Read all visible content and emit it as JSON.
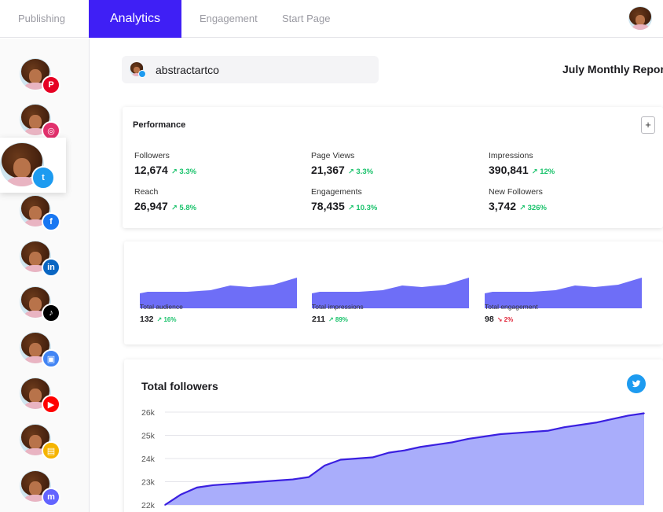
{
  "nav": {
    "tabs": [
      {
        "label": "Publishing",
        "active": false
      },
      {
        "label": "Analytics",
        "active": true
      },
      {
        "label": "Engagement",
        "active": false
      },
      {
        "label": "Start Page",
        "active": false
      }
    ]
  },
  "sidebar": {
    "accounts": [
      {
        "network": "pinterest-icon",
        "color": "#e60023",
        "glyph": "P"
      },
      {
        "network": "instagram-icon",
        "color": "#e1306c",
        "glyph": "◎"
      },
      {
        "network": "twitter-icon",
        "color": "#1d9bf0",
        "glyph": "t",
        "selected": true
      },
      {
        "network": "facebook-icon",
        "color": "#1877f2",
        "glyph": "f"
      },
      {
        "network": "linkedin-icon",
        "color": "#0a66c2",
        "glyph": "in"
      },
      {
        "network": "tiktok-icon",
        "color": "#000000",
        "glyph": "♪"
      },
      {
        "network": "google-business-icon",
        "color": "#4285f4",
        "glyph": "▣"
      },
      {
        "network": "youtube-icon",
        "color": "#ff0000",
        "glyph": "▶"
      },
      {
        "network": "start-page-icon",
        "color": "#f5b400",
        "glyph": "▤"
      },
      {
        "network": "mastodon-icon",
        "color": "#6364ff",
        "glyph": "m"
      }
    ]
  },
  "header": {
    "account_name": "abstractartco",
    "report_title": "July Monthly Report"
  },
  "performance": {
    "title": "Performance",
    "add_label": "+",
    "metrics": [
      {
        "label": "Followers",
        "value": "12,674",
        "change": "↗ 3.3%"
      },
      {
        "label": "Page Views",
        "value": "21,367",
        "change": "↗ 3.3%"
      },
      {
        "label": "Impressions",
        "value": "390,841",
        "change": "↗ 12%"
      },
      {
        "label": "Reach",
        "value": "26,947",
        "change": "↗ 5.8%"
      },
      {
        "label": "Engagements",
        "value": "78,435",
        "change": "↗ 10.3%"
      },
      {
        "label": "New Followers",
        "value": "3,742",
        "change": "↗ 326%"
      }
    ]
  },
  "sparklines": [
    {
      "label": "Total audience",
      "value": "132",
      "change": "↗ 16%",
      "direction": "up"
    },
    {
      "label": "Total impressions",
      "value": "211",
      "change": "↗ 89%",
      "direction": "up"
    },
    {
      "label": "Total engagement",
      "value": "98",
      "change": "↘ 2%",
      "direction": "down"
    }
  ],
  "colors": {
    "accent": "#3f1ff5",
    "spark_fill": "#6e6ef7",
    "area_fill": "#a9adfb",
    "line": "#3a1fe0",
    "positive": "#19c26b",
    "negative": "#e0263a"
  },
  "chart_data": {
    "type": "area",
    "title": "Total followers",
    "ylabel": "",
    "xlabel": "",
    "yticks": [
      "26k",
      "25k",
      "24k",
      "23k",
      "22k"
    ],
    "ylim": [
      22000,
      26000
    ],
    "x": [
      0,
      1,
      2,
      3,
      4,
      5,
      6,
      7,
      8,
      9,
      10,
      11,
      12,
      13,
      14,
      15,
      16,
      17,
      18,
      19,
      20,
      21,
      22,
      23,
      24,
      25,
      26,
      27,
      28,
      29,
      30
    ],
    "values": [
      22000,
      22450,
      22750,
      22850,
      22900,
      22950,
      23000,
      23050,
      23100,
      23200,
      23700,
      23950,
      24000,
      24050,
      24250,
      24350,
      24500,
      24600,
      24700,
      24850,
      24950,
      25050,
      25100,
      25150,
      25200,
      25350,
      25450,
      25550,
      25700,
      25850,
      25950
    ],
    "grid": true
  }
}
